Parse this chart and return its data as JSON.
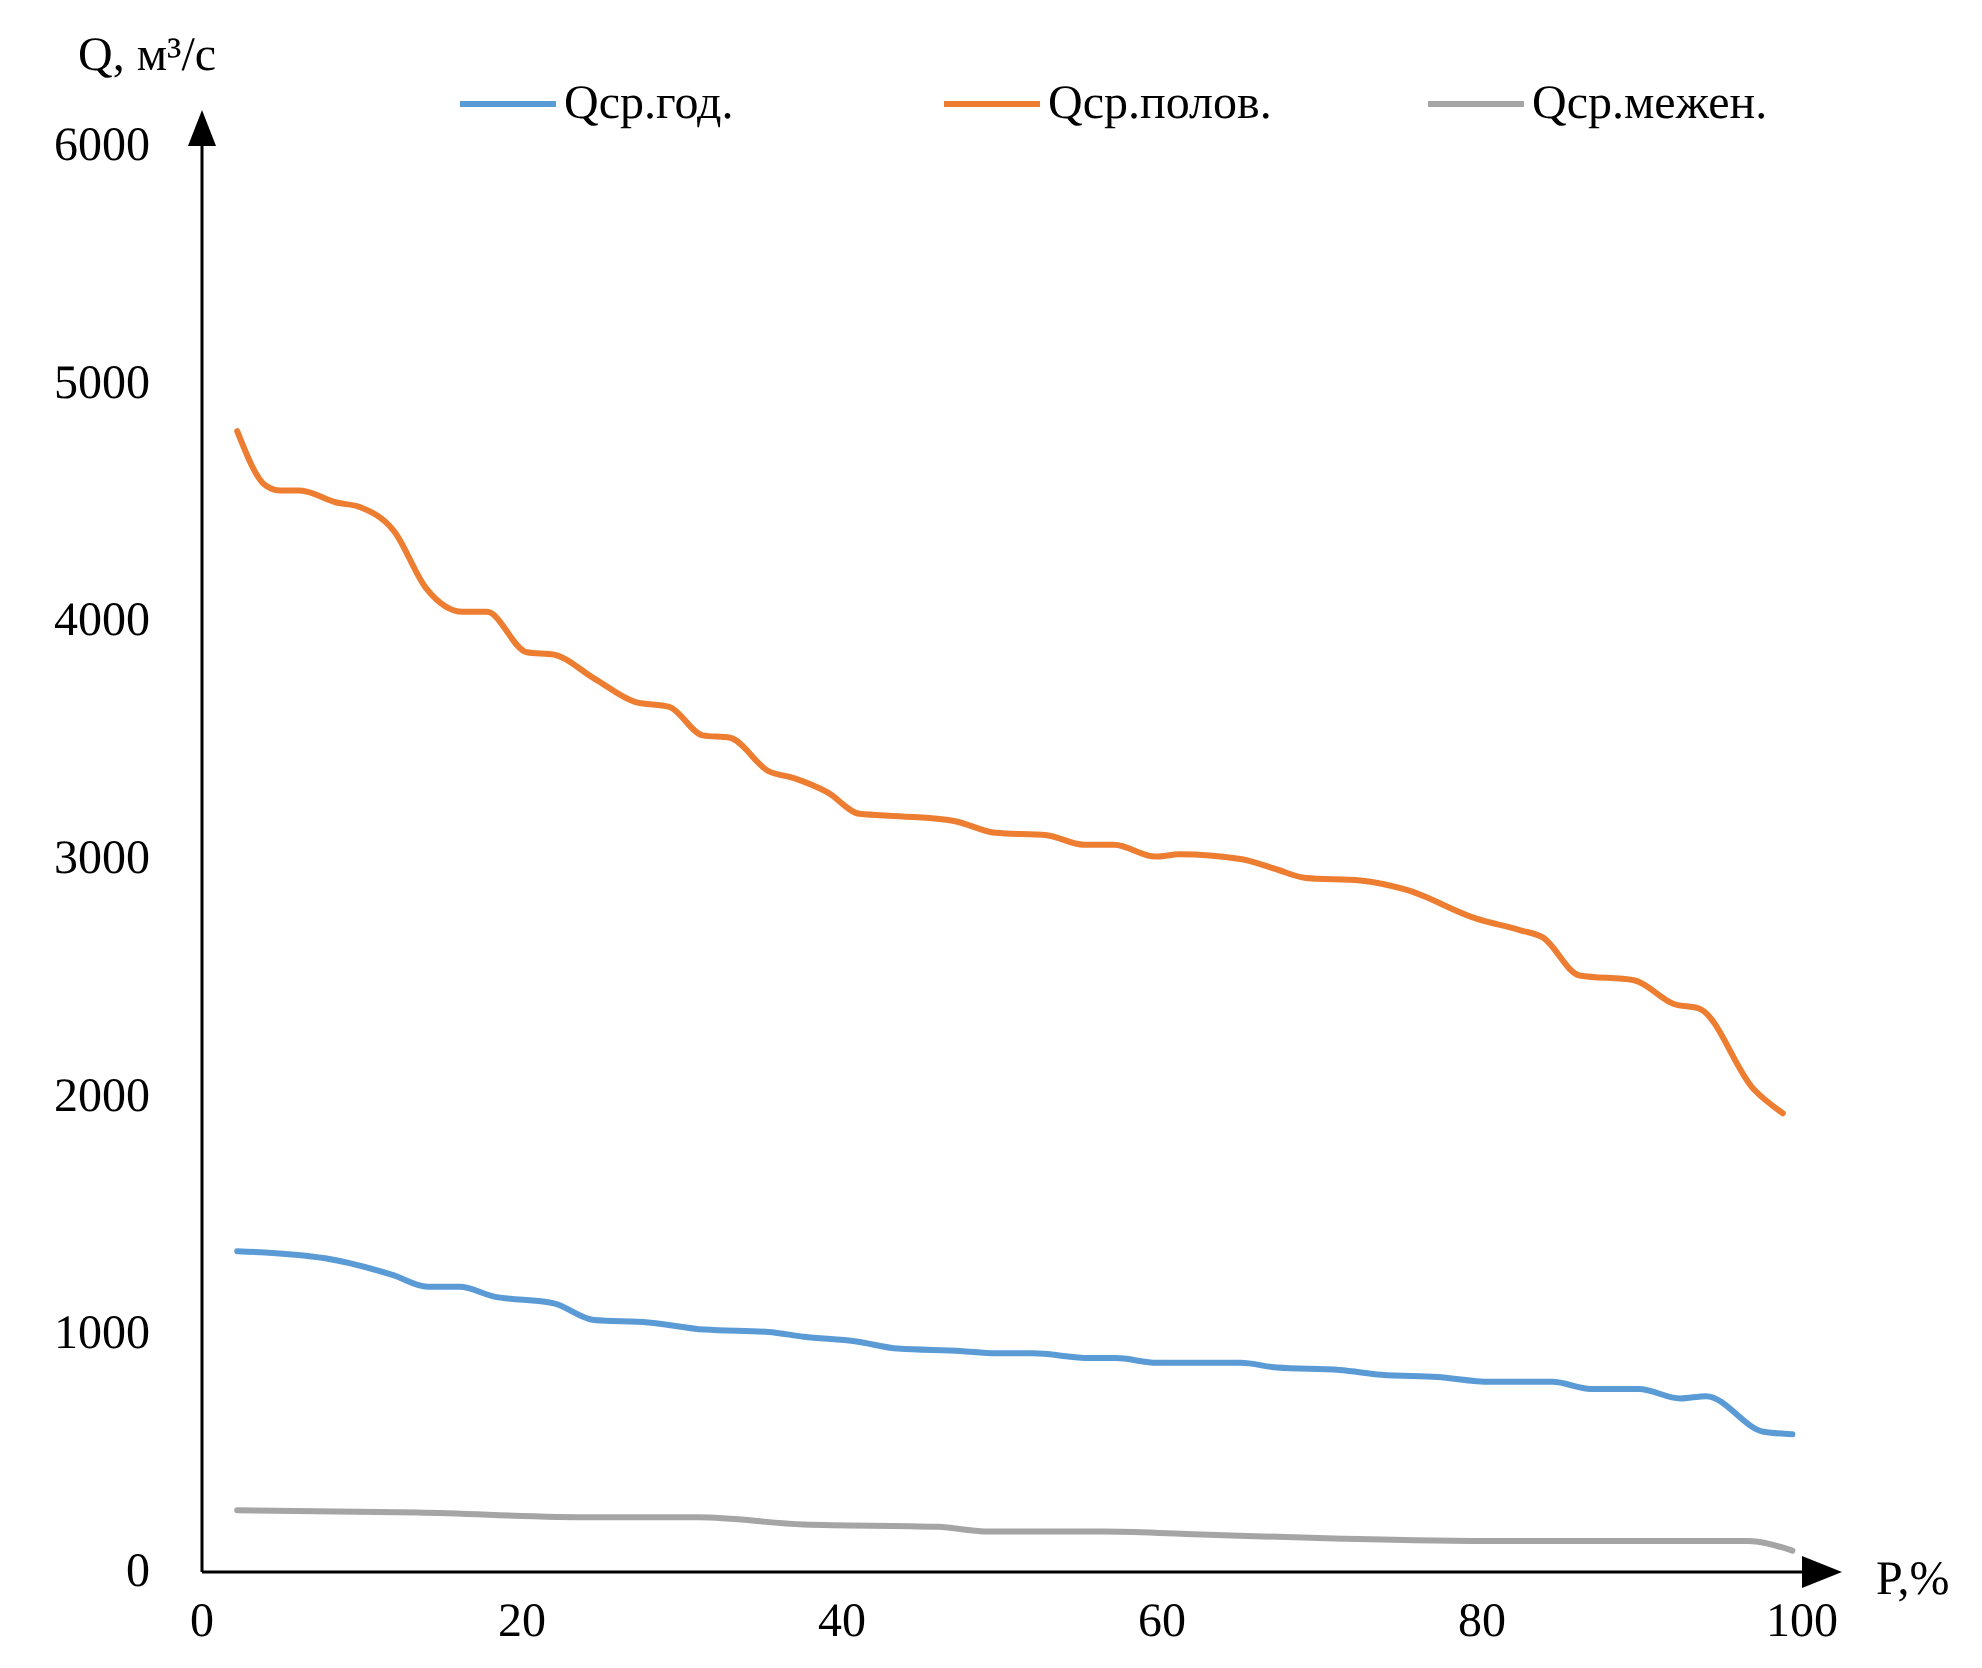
{
  "chart_data": {
    "type": "line",
    "xlabel": "P,%",
    "ylabel": "Q, м³/с",
    "xlim": [
      0,
      100
    ],
    "ylim": [
      0,
      6000
    ],
    "xticks": [
      0,
      20,
      40,
      60,
      80,
      100
    ],
    "yticks": [
      0,
      1000,
      2000,
      3000,
      4000,
      5000,
      6000
    ],
    "grid": false,
    "legend": "top",
    "marker": "none",
    "line_style": "solid",
    "series": [
      {
        "name": "Qср.год.",
        "color": "#5b9bd5",
        "x": [
          2.2,
          7.7,
          11.9,
          14.1,
          16.1,
          18.2,
          22,
          24.5,
          27.9,
          31.4,
          35.4,
          37.6,
          40.9,
          43.5,
          47.4,
          49.6,
          51.9,
          55.5,
          57.1,
          59.7,
          64.9,
          67.2,
          71.1,
          73.7,
          77.2,
          80.5,
          84.4,
          86.8,
          89.8,
          92.4,
          94,
          97.6,
          99.4
        ],
        "values": [
          1350,
          1320,
          1250,
          1200,
          1200,
          1160,
          1130,
          1060,
          1050,
          1020,
          1010,
          990,
          970,
          940,
          930,
          920,
          920,
          900,
          900,
          880,
          880,
          860,
          850,
          830,
          820,
          800,
          800,
          770,
          770,
          730,
          740,
          590,
          580
        ]
      },
      {
        "name": "Qср.полов.",
        "color": "#ed7d31",
        "x": [
          2.2,
          4,
          4.9,
          6.1,
          8.4,
          9.9,
          12,
          14,
          16.3,
          17.8,
          20.3,
          22,
          24.5,
          27.1,
          29.2,
          31.3,
          33,
          35.4,
          37,
          39.1,
          41.1,
          43.6,
          47,
          49.6,
          52.8,
          55.1,
          57,
          59.6,
          61.1,
          64.9,
          67,
          69,
          72.4,
          75.3,
          79.6,
          82.4,
          83.8,
          86.1,
          89.5,
          92,
          93.6,
          97,
          98.8
        ],
        "values": [
          4800,
          4570,
          4550,
          4550,
          4500,
          4480,
          4380,
          4140,
          4040,
          4040,
          3870,
          3860,
          3760,
          3660,
          3640,
          3520,
          3510,
          3370,
          3340,
          3280,
          3190,
          3180,
          3160,
          3110,
          3100,
          3060,
          3060,
          3010,
          3020,
          3000,
          2960,
          2920,
          2910,
          2870,
          2750,
          2700,
          2670,
          2510,
          2490,
          2390,
          2370,
          2030,
          1930
        ]
      },
      {
        "name": "Qср.межен.",
        "color": "#a5a5a5",
        "x": [
          2.2,
          13.5,
          24.5,
          31,
          37.6,
          46,
          49.2,
          56.3,
          61.5,
          71.3,
          81,
          86.2,
          96.6,
          99.4
        ],
        "values": [
          260,
          250,
          230,
          230,
          200,
          190,
          170,
          170,
          160,
          140,
          130,
          130,
          130,
          90
        ]
      }
    ]
  }
}
